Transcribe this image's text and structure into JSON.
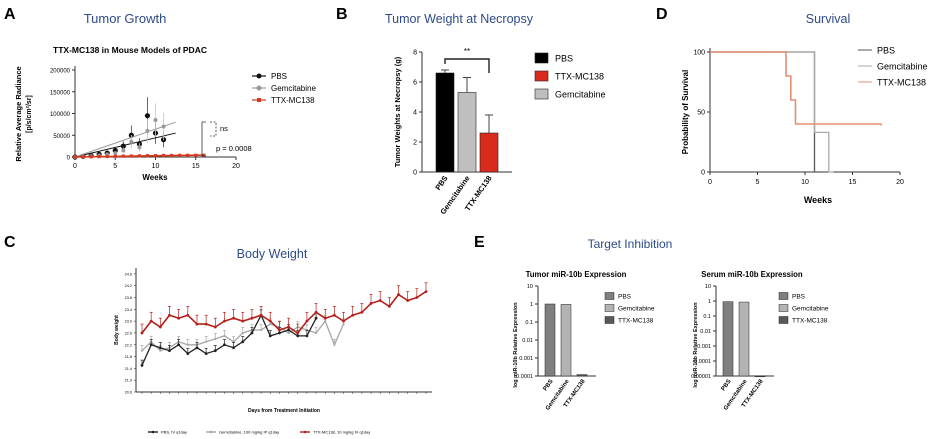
{
  "chart_data": [
    {
      "panel": "A",
      "type": "scatter",
      "title": "Tumor Growth",
      "subtitle": "TTX-MC138 in Mouse Models of PDAC",
      "xlabel": "Weeks",
      "ylabel": "Relative Average Radiance",
      "ylabel_units": "[p/s/cm²/sr]",
      "xlim": [
        0,
        20
      ],
      "ylim": [
        0,
        200000
      ],
      "xticks": [
        "0",
        "5",
        "10",
        "15",
        "20"
      ],
      "yticks": [
        "0",
        "50000",
        "100000",
        "150000",
        "200000"
      ],
      "legend": [
        "PBS",
        "Gemcitabine",
        "TTX-MC138"
      ],
      "annotations": {
        "ns": "ns",
        "pvalue": "p = 0.0008"
      },
      "series": [
        {
          "name": "PBS",
          "color": "#111111",
          "x": [
            0,
            1,
            2,
            3,
            4,
            5,
            6,
            7,
            8,
            9,
            10,
            11
          ],
          "y": [
            0,
            1500,
            3000,
            6000,
            9000,
            15000,
            25000,
            50000,
            30000,
            95000,
            55000,
            40000
          ]
        },
        {
          "name": "Gemcitabine",
          "color": "#9a9a9a",
          "x": [
            0,
            1,
            2,
            3,
            4,
            5,
            6,
            7,
            8,
            9,
            10,
            11
          ],
          "y": [
            0,
            1000,
            2000,
            3500,
            6000,
            9000,
            15000,
            35000,
            22000,
            60000,
            85000,
            70000
          ]
        },
        {
          "name": "TTX-MC138",
          "color": "#d23a22",
          "x": [
            0,
            1,
            2,
            3,
            4,
            5,
            6,
            7,
            8,
            9,
            10,
            11,
            12,
            13,
            14,
            15,
            16
          ],
          "y": [
            0,
            300,
            600,
            900,
            1200,
            1600,
            2000,
            2200,
            2600,
            3000,
            3200,
            3500,
            3600,
            3800,
            3900,
            4000,
            4100
          ]
        }
      ]
    },
    {
      "panel": "B",
      "type": "bar",
      "title": "Tumor Weight at Necropsy",
      "ylabel": "Tumor Weights at Necropsy (g)",
      "categories": [
        "PBS",
        "Gemcitabine",
        "TTX-MC138"
      ],
      "values": [
        6.6,
        5.3,
        2.6
      ],
      "errors": [
        0.2,
        1.0,
        1.2
      ],
      "colors": [
        "#000000",
        "#bfbfbf",
        "#d92a1c"
      ],
      "ylim": [
        0,
        8
      ],
      "yticks": [
        "0",
        "2",
        "4",
        "6",
        "8"
      ],
      "significance": "**",
      "legend": [
        "PBS",
        "TTX-MC138",
        "Gemcitabine"
      ]
    },
    {
      "panel": "D",
      "type": "line",
      "title": "Survival",
      "xlabel": "Weeks",
      "ylabel": "Probability of Survival",
      "xlim": [
        0,
        20
      ],
      "ylim": [
        0,
        100
      ],
      "xticks": [
        "0",
        "5",
        "10",
        "15",
        "20"
      ],
      "yticks": [
        "0",
        "50",
        "100"
      ],
      "legend": [
        "PBS",
        "Gemcitabine",
        "TTX-MC138"
      ],
      "series": [
        {
          "name": "PBS",
          "color": "#555555",
          "step_x": [
            0,
            11,
            11,
            11.5
          ],
          "step_y": [
            100,
            100,
            0,
            0
          ]
        },
        {
          "name": "Gemcitabine",
          "color": "#aaaaaa",
          "step_x": [
            0,
            11,
            11,
            12.5,
            12.5,
            13,
            13
          ],
          "step_y": [
            100,
            100,
            33,
            33,
            0,
            0,
            0
          ]
        },
        {
          "name": "TTX-MC138",
          "color": "#e58f72",
          "step_x": [
            0,
            8,
            8,
            8.5,
            8.5,
            9,
            9,
            18
          ],
          "step_y": [
            100,
            100,
            80,
            80,
            60,
            60,
            40,
            40
          ]
        }
      ]
    },
    {
      "panel": "C",
      "type": "line",
      "title": "Body Weight",
      "xlabel": "Days from Treatment Initiation",
      "ylabel": "Body weight",
      "ylim": [
        20.6,
        24.8
      ],
      "yticks": [
        "20.6",
        "21.0",
        "21.4",
        "21.8",
        "22.2",
        "22.6",
        "23.0",
        "23.4",
        "23.8",
        "24.2",
        "24.6"
      ],
      "legend": [
        "PBS, IV q1day",
        "Gemcitabine, 100 mg/kg IP q1day",
        "TTX-MC138, 10 mg/kg IV q1day"
      ],
      "series": [
        {
          "name": "PBS",
          "color": "#222222",
          "x": [
            0,
            1,
            2,
            3,
            4,
            5,
            6,
            7,
            8,
            9,
            10,
            11,
            12,
            13,
            14,
            15,
            16,
            17,
            18,
            19
          ],
          "y": [
            21.5,
            22.2,
            22.1,
            22.0,
            22.2,
            21.9,
            22.1,
            21.9,
            22.0,
            22.2,
            22.1,
            22.3,
            22.6,
            23.2,
            22.5,
            22.6,
            22.7,
            22.5,
            22.5,
            23.1
          ]
        },
        {
          "name": "Gemcitabine",
          "color": "#a6a6a6",
          "x": [
            0,
            1,
            2,
            3,
            4,
            5,
            6,
            7,
            8,
            9,
            10,
            11,
            12,
            13,
            14,
            15,
            16,
            17,
            18,
            19,
            20,
            21,
            22
          ],
          "y": [
            22.0,
            22.3,
            22.0,
            22.1,
            22.3,
            22.2,
            22.2,
            22.3,
            22.4,
            22.5,
            22.3,
            22.6,
            22.7,
            22.7,
            22.9,
            22.8,
            22.6,
            22.8,
            22.7,
            22.6,
            23.0,
            22.2,
            22.9
          ]
        },
        {
          "name": "TTX-MC138",
          "color": "#b5201b",
          "x": [
            0,
            1,
            2,
            3,
            4,
            5,
            6,
            7,
            8,
            9,
            10,
            11,
            12,
            13,
            14,
            15,
            16,
            17,
            18,
            19,
            20,
            21,
            22,
            23,
            24,
            25,
            26,
            27,
            28,
            29,
            30,
            31
          ],
          "y": [
            22.6,
            23.0,
            22.8,
            23.2,
            23.1,
            23.2,
            22.9,
            22.9,
            22.8,
            23.0,
            23.1,
            23.0,
            23.1,
            23.2,
            23.0,
            22.7,
            22.8,
            22.6,
            23.0,
            23.3,
            23.1,
            23.2,
            23.0,
            23.2,
            23.3,
            23.6,
            23.7,
            23.5,
            23.9,
            23.7,
            23.8,
            24.0
          ]
        }
      ]
    },
    {
      "panel": "E",
      "type": "bar",
      "title": "Target Inhibition",
      "subplots": [
        {
          "subtitle": "Tumor miR-10b Expression",
          "ylabel": "log miR-10b Relative Expression",
          "yscale": "log",
          "yticks": [
            "0.0001",
            "0.001",
            "0.01",
            "0.1",
            "1",
            "10"
          ],
          "categories": [
            "PBS",
            "Gemcitabine",
            "TTX-MC138"
          ],
          "values": [
            1.0,
            0.95,
            0.00012
          ],
          "colors": [
            "#7f7f7f",
            "#b3b3b3",
            "#5a5a5a"
          ],
          "legend": [
            "PBS",
            "Gemcitabine",
            "TTX-MC138"
          ]
        },
        {
          "subtitle": "Serum miR-10b Expression",
          "ylabel": "log miR-10b Relative Expression",
          "yscale": "log",
          "yticks": [
            "0.00001",
            "0.0001",
            "0.001",
            "0.01",
            "0.1",
            "1",
            "10"
          ],
          "categories": [
            "PBS",
            "Gemcitabine",
            "TTX-MC138"
          ],
          "values": [
            0.9,
            0.85,
            1e-05
          ],
          "colors": [
            "#7f7f7f",
            "#b3b3b3",
            "#5a5a5a"
          ],
          "legend": [
            "PBS",
            "Gemcitabine",
            "TTX-MC138"
          ]
        }
      ]
    }
  ],
  "panel_letters": {
    "a": "A",
    "b": "B",
    "c": "C",
    "d": "D",
    "e": "E"
  }
}
